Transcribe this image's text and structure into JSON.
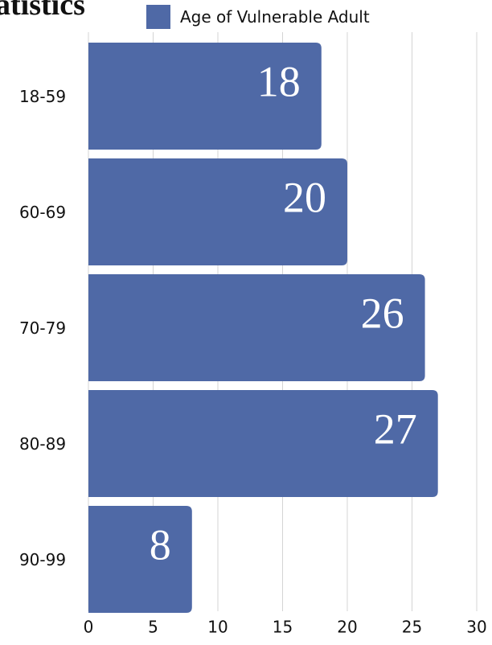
{
  "chart_data": {
    "type": "bar",
    "orientation": "horizontal",
    "title": "atistics",
    "categories": [
      "18-59",
      "60-69",
      "70-79",
      "80-89",
      "90-99"
    ],
    "series": [
      {
        "name": "Age of Vulnerable Adult",
        "values": [
          18,
          20,
          26,
          27,
          8
        ],
        "color": "#4f69a6"
      }
    ],
    "data_labels": [
      "18",
      "20",
      "26",
      "27",
      "8"
    ],
    "xticks": [
      0,
      5,
      10,
      15,
      20,
      25,
      30
    ],
    "xlim": [
      0,
      30
    ],
    "grid": "vertical",
    "legend": "top"
  }
}
